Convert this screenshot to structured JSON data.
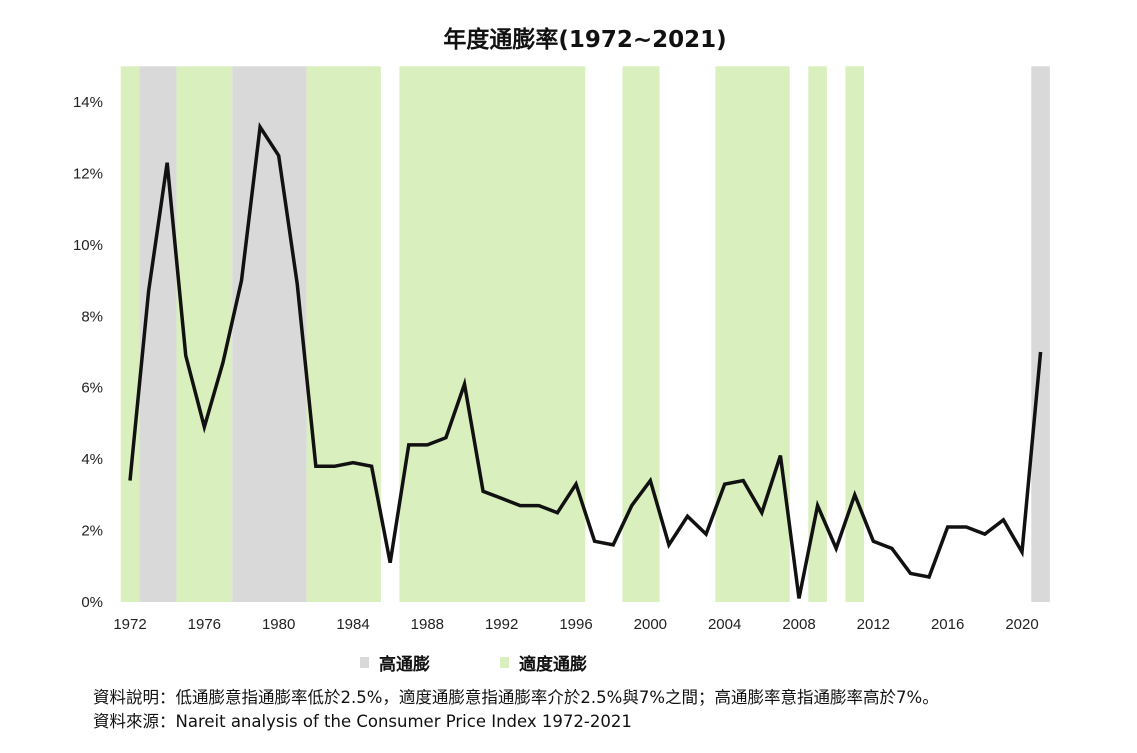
{
  "chart_data": {
    "type": "line",
    "title": "年度通膨率(1972~2021)",
    "xlabel": "",
    "ylabel": "",
    "ylim": [
      0,
      15
    ],
    "yticks": [
      "0%",
      "2%",
      "4%",
      "6%",
      "8%",
      "10%",
      "12%",
      "14%"
    ],
    "ytick_values": [
      0,
      2,
      4,
      6,
      8,
      10,
      12,
      14
    ],
    "xticks": [
      "1972",
      "1976",
      "1980",
      "1984",
      "1988",
      "1992",
      "1996",
      "2000",
      "2004",
      "2008",
      "2012",
      "2016",
      "2020"
    ],
    "x": [
      1972,
      1973,
      1974,
      1975,
      1976,
      1977,
      1978,
      1979,
      1980,
      1981,
      1982,
      1983,
      1984,
      1985,
      1986,
      1987,
      1988,
      1989,
      1990,
      1991,
      1992,
      1993,
      1994,
      1995,
      1996,
      1997,
      1998,
      1999,
      2000,
      2001,
      2002,
      2003,
      2004,
      2005,
      2006,
      2007,
      2008,
      2009,
      2010,
      2011,
      2012,
      2013,
      2014,
      2015,
      2016,
      2017,
      2018,
      2019,
      2020,
      2021
    ],
    "series": [
      {
        "name": "年度通膨率",
        "color": "#111111",
        "values": [
          3.4,
          8.7,
          12.3,
          6.9,
          4.9,
          6.7,
          9.0,
          13.3,
          12.5,
          8.9,
          3.8,
          3.8,
          3.9,
          3.8,
          1.1,
          4.4,
          4.4,
          4.6,
          6.1,
          3.1,
          2.9,
          2.7,
          2.7,
          2.5,
          3.3,
          1.7,
          1.6,
          2.7,
          3.4,
          1.6,
          2.4,
          1.9,
          3.3,
          3.4,
          2.5,
          4.1,
          0.1,
          2.7,
          1.5,
          3.0,
          1.7,
          1.5,
          0.8,
          0.7,
          2.1,
          2.1,
          1.9,
          2.3,
          1.4,
          7.0
        ]
      }
    ],
    "bands": [
      {
        "type": "moderate",
        "from": 1972,
        "to": 1972
      },
      {
        "type": "high",
        "from": 1973,
        "to": 1974
      },
      {
        "type": "moderate",
        "from": 1975,
        "to": 1977
      },
      {
        "type": "high",
        "from": 1978,
        "to": 1981
      },
      {
        "type": "moderate",
        "from": 1982,
        "to": 1985
      },
      {
        "type": "moderate",
        "from": 1987,
        "to": 1996
      },
      {
        "type": "moderate",
        "from": 1999,
        "to": 2000
      },
      {
        "type": "moderate",
        "from": 2004,
        "to": 2007
      },
      {
        "type": "moderate",
        "from": 2009,
        "to": 2009
      },
      {
        "type": "moderate",
        "from": 2011,
        "to": 2011
      },
      {
        "type": "high",
        "from": 2021,
        "to": 2021
      }
    ],
    "legend": [
      {
        "label": "高通膨",
        "type": "high",
        "color": "#d9d9d9"
      },
      {
        "label": "適度通膨",
        "type": "moderate",
        "color": "#d9efbd"
      }
    ],
    "legend_position": "bottom"
  },
  "notes": {
    "description": "資料說明：低通膨意指通膨率低於2.5%，適度通膨意指通膨率介於2.5%與7%之間；高通膨率意指通膨率高於7%。",
    "source": "資料來源：Nareit analysis of the Consumer Price Index 1972-2021"
  }
}
